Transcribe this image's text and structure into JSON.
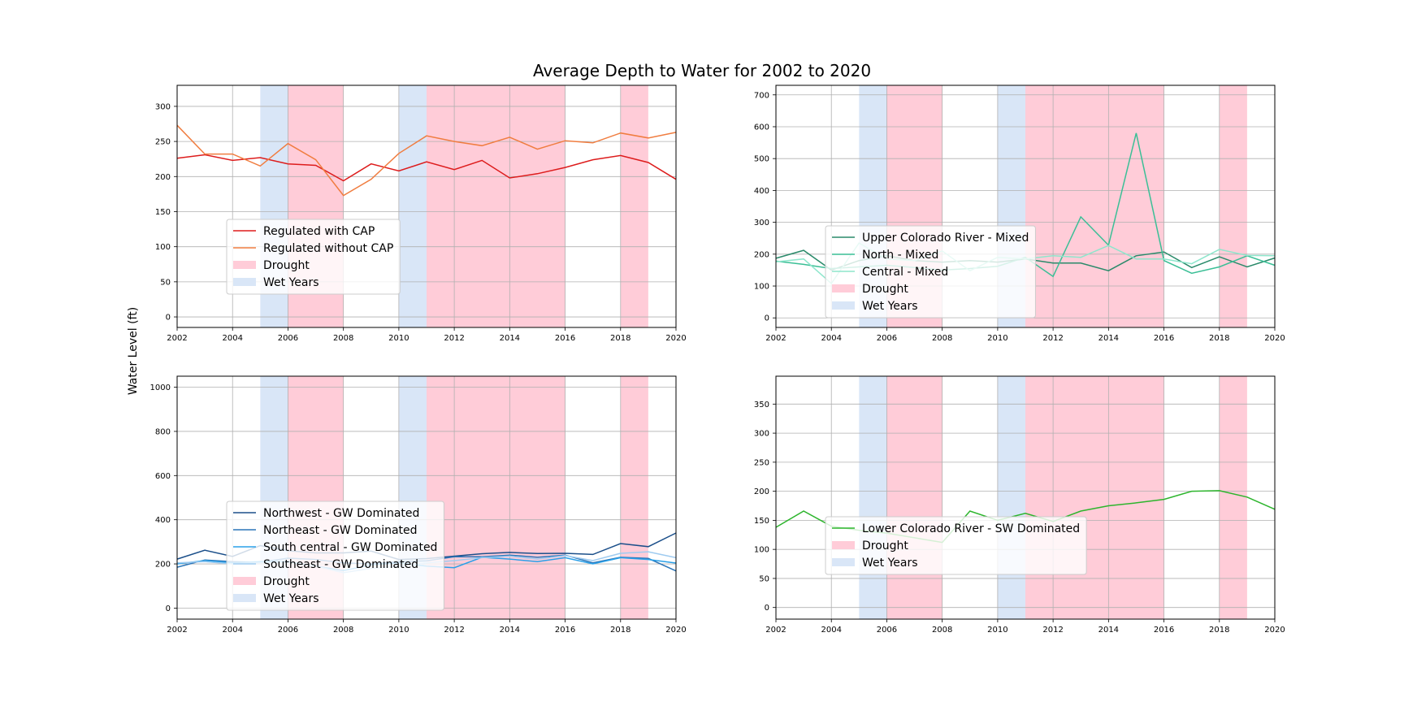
{
  "figure": {
    "title": "Average Depth to Water for 2002 to 2020",
    "ylabel": "Water Level (ft)"
  },
  "chart_data": [
    {
      "type": "line",
      "x": [
        2002,
        2003,
        2004,
        2005,
        2006,
        2007,
        2008,
        2009,
        2010,
        2011,
        2012,
        2013,
        2014,
        2015,
        2016,
        2017,
        2018,
        2019,
        2020
      ],
      "xlim": [
        2002,
        2020
      ],
      "xticks": [
        2002,
        2004,
        2006,
        2008,
        2010,
        2012,
        2014,
        2016,
        2018,
        2020
      ],
      "ylim": [
        -15,
        330
      ],
      "yticks": [
        0,
        50,
        100,
        150,
        200,
        250,
        300
      ],
      "grid": true,
      "legend_placement": "lower-left",
      "series": [
        {
          "name": "Regulated with CAP",
          "color": "#dd1c1c",
          "values": [
            226,
            231,
            223,
            227,
            218,
            216,
            194,
            218,
            208,
            221,
            210,
            223,
            198,
            204,
            213,
            224,
            230,
            220,
            196
          ]
        },
        {
          "name": "Regulated without CAP",
          "color": "#f07d40",
          "values": [
            273,
            232,
            232,
            215,
            247,
            224,
            173,
            196,
            233,
            258,
            250,
            244,
            256,
            239,
            251,
            248,
            262,
            255,
            263
          ]
        }
      ],
      "shaded": [
        {
          "name": "Drought",
          "color": "#ffccd8",
          "ranges": [
            [
              2006,
              2008
            ],
            [
              2011,
              2016
            ],
            [
              2018,
              2019
            ]
          ]
        },
        {
          "name": "Wet Years",
          "color": "#d9e6f7",
          "ranges": [
            [
              2005,
              2006
            ],
            [
              2010,
              2011
            ]
          ]
        }
      ]
    },
    {
      "type": "line",
      "x": [
        2002,
        2003,
        2004,
        2005,
        2006,
        2007,
        2008,
        2009,
        2010,
        2011,
        2012,
        2013,
        2014,
        2015,
        2016,
        2017,
        2018,
        2019,
        2020
      ],
      "xlim": [
        2002,
        2020
      ],
      "xticks": [
        2002,
        2004,
        2006,
        2008,
        2010,
        2012,
        2014,
        2016,
        2018,
        2020
      ],
      "ylim": [
        -30,
        730
      ],
      "yticks": [
        0,
        100,
        200,
        300,
        400,
        500,
        600,
        700
      ],
      "grid": true,
      "legend_placement": "lower-left",
      "series": [
        {
          "name": "Upper Colorado River - Mixed",
          "color": "#2a8a6a",
          "values": [
            187,
            212,
            150,
            180,
            195,
            180,
            175,
            180,
            175,
            185,
            172,
            172,
            148,
            195,
            207,
            158,
            192,
            160,
            188
          ]
        },
        {
          "name": "North - Mixed",
          "color": "#3bbf96",
          "values": [
            178,
            168,
            155,
            160,
            165,
            158,
            150,
            155,
            162,
            190,
            130,
            317,
            228,
            580,
            180,
            140,
            160,
            195,
            165
          ]
        },
        {
          "name": "Central - Mixed",
          "color": "#8ee6cc",
          "values": [
            176,
            185,
            108,
            235,
            185,
            180,
            210,
            148,
            190,
            185,
            195,
            190,
            227,
            185,
            185,
            170,
            215,
            196,
            195
          ]
        }
      ],
      "shaded": [
        {
          "name": "Drought",
          "color": "#ffccd8",
          "ranges": [
            [
              2006,
              2008
            ],
            [
              2011,
              2016
            ],
            [
              2018,
              2019
            ]
          ]
        },
        {
          "name": "Wet Years",
          "color": "#d9e6f7",
          "ranges": [
            [
              2005,
              2006
            ],
            [
              2010,
              2011
            ]
          ]
        }
      ]
    },
    {
      "type": "line",
      "x": [
        2002,
        2003,
        2004,
        2005,
        2006,
        2007,
        2008,
        2009,
        2010,
        2011,
        2012,
        2013,
        2014,
        2015,
        2016,
        2017,
        2018,
        2019,
        2020
      ],
      "xlim": [
        2002,
        2020
      ],
      "xticks": [
        2002,
        2004,
        2006,
        2008,
        2010,
        2012,
        2014,
        2016,
        2018,
        2020
      ],
      "ylim": [
        -50,
        1050
      ],
      "yticks": [
        0,
        200,
        400,
        600,
        800,
        1000
      ],
      "grid": true,
      "legend_placement": "lower-left",
      "series": [
        {
          "name": "Northwest - GW Dominated",
          "color": "#1b4f8a",
          "values": [
            222,
            262,
            234,
            283,
            260,
            250,
            250,
            258,
            220,
            224,
            235,
            246,
            252,
            247,
            248,
            243,
            292,
            278,
            340
          ]
        },
        {
          "name": "Northeast - GW Dominated",
          "color": "#2b75b8",
          "values": [
            185,
            218,
            210,
            207,
            226,
            220,
            205,
            200,
            210,
            214,
            232,
            232,
            240,
            230,
            240,
            205,
            230,
            225,
            168
          ]
        },
        {
          "name": "South central - GW Dominated",
          "color": "#2aa0e8",
          "values": [
            200,
            215,
            205,
            210,
            210,
            190,
            170,
            195,
            205,
            190,
            183,
            230,
            222,
            210,
            228,
            200,
            228,
            220,
            204
          ]
        },
        {
          "name": "Southeast - GW Dominated",
          "color": "#9fcbf0",
          "values": [
            205,
            210,
            200,
            205,
            208,
            190,
            160,
            180,
            190,
            205,
            215,
            228,
            235,
            222,
            238,
            215,
            248,
            255,
            228
          ]
        }
      ],
      "shaded": [
        {
          "name": "Drought",
          "color": "#ffccd8",
          "ranges": [
            [
              2006,
              2008
            ],
            [
              2011,
              2016
            ],
            [
              2018,
              2019
            ]
          ]
        },
        {
          "name": "Wet Years",
          "color": "#d9e6f7",
          "ranges": [
            [
              2005,
              2006
            ],
            [
              2010,
              2011
            ]
          ]
        }
      ]
    },
    {
      "type": "line",
      "x": [
        2002,
        2003,
        2004,
        2005,
        2006,
        2007,
        2008,
        2009,
        2010,
        2011,
        2012,
        2013,
        2014,
        2015,
        2016,
        2017,
        2018,
        2019,
        2020
      ],
      "xlim": [
        2002,
        2020
      ],
      "xticks": [
        2002,
        2004,
        2006,
        2008,
        2010,
        2012,
        2014,
        2016,
        2018,
        2020
      ],
      "ylim": [
        -20,
        398
      ],
      "yticks": [
        0,
        50,
        100,
        150,
        200,
        250,
        300,
        350
      ],
      "grid": true,
      "legend_placement": "lower-left",
      "series": [
        {
          "name": "Lower Colorado River - SW Dominated",
          "color": "#2db52d",
          "values": [
            138,
            166,
            140,
            133,
            128,
            120,
            112,
            166,
            150,
            162,
            148,
            166,
            175,
            180,
            186,
            200,
            201,
            190,
            169
          ]
        }
      ],
      "shaded": [
        {
          "name": "Drought",
          "color": "#ffccd8",
          "ranges": [
            [
              2006,
              2008
            ],
            [
              2011,
              2016
            ],
            [
              2018,
              2019
            ]
          ]
        },
        {
          "name": "Wet Years",
          "color": "#d9e6f7",
          "ranges": [
            [
              2005,
              2006
            ],
            [
              2010,
              2011
            ]
          ]
        }
      ]
    }
  ]
}
